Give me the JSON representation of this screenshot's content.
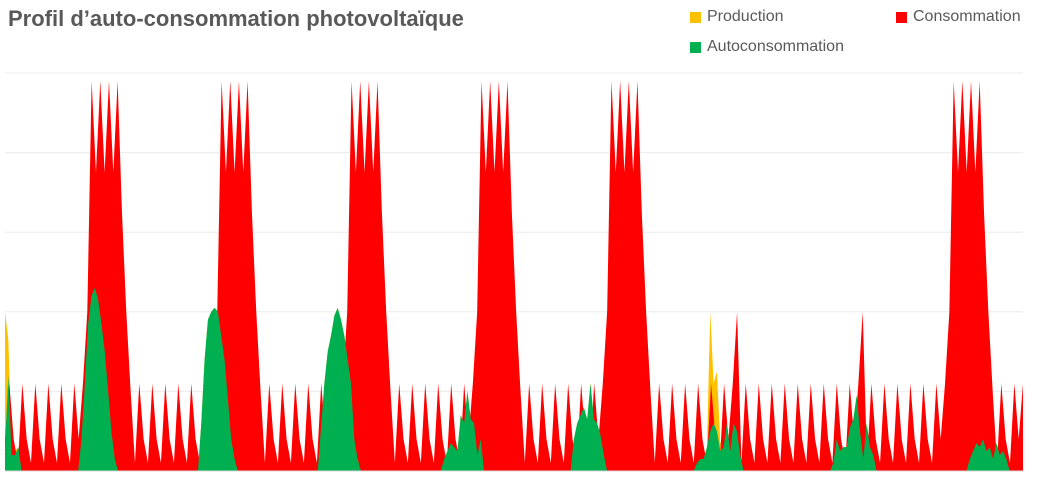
{
  "chart_data": {
    "type": "area",
    "title": "Profil d’auto-consommation photovoltaïque",
    "legend_placement": "top-right",
    "ylim": [
      0,
      100
    ],
    "grid": true,
    "grid_lines": [
      20,
      40,
      60,
      80,
      100
    ],
    "series": [
      {
        "name": "Production",
        "color": "#FFC000",
        "values": [
          40,
          33,
          6,
          5,
          6,
          0,
          0,
          0,
          0,
          0,
          0,
          0,
          0,
          0,
          0,
          0,
          0,
          0,
          0,
          0,
          0,
          0,
          0,
          8,
          22,
          37,
          44,
          46,
          43,
          37,
          30,
          20,
          10,
          3,
          0,
          0,
          0,
          0,
          0,
          0,
          0,
          0,
          0,
          0,
          0,
          0,
          0,
          0,
          0,
          0,
          0,
          0,
          0,
          0,
          0,
          0,
          0,
          0,
          0,
          12,
          28,
          38,
          40,
          41,
          40,
          34,
          28,
          18,
          8,
          3,
          0,
          0,
          0,
          0,
          0,
          0,
          0,
          0,
          0,
          0,
          0,
          0,
          0,
          0,
          0,
          0,
          0,
          0,
          0,
          0,
          0,
          0,
          0,
          0,
          0,
          11,
          22,
          30,
          34,
          39,
          41,
          38,
          34,
          28,
          22,
          8,
          3,
          0,
          0,
          0,
          0,
          0,
          0,
          0,
          0,
          0,
          0,
          0,
          0,
          0,
          0,
          0,
          0,
          0,
          0,
          0,
          0,
          0,
          0,
          0,
          0,
          0,
          3,
          5,
          7,
          6,
          5,
          14,
          12,
          20,
          13,
          12,
          4,
          8,
          0,
          0,
          0,
          0,
          0,
          0,
          0,
          0,
          0,
          0,
          0,
          0,
          0,
          0,
          0,
          0,
          0,
          0,
          0,
          0,
          0,
          0,
          0,
          0,
          0,
          0,
          0,
          8,
          12,
          14,
          16,
          13,
          22,
          13,
          12,
          9,
          4,
          0,
          0,
          0,
          0,
          0,
          0,
          0,
          0,
          0,
          0,
          0,
          0,
          0,
          0,
          0,
          0,
          0,
          0,
          0,
          0,
          0,
          0,
          0,
          0,
          0,
          0,
          0,
          2,
          3,
          3,
          6,
          40,
          22,
          25,
          7,
          8,
          12,
          5,
          12,
          10,
          4,
          0,
          0,
          0,
          0,
          0,
          0,
          0,
          0,
          0,
          0,
          0,
          0,
          0,
          0,
          0,
          0,
          0,
          0,
          0,
          0,
          0,
          0,
          0,
          0,
          0,
          0,
          0,
          2,
          8,
          5,
          6,
          6,
          11,
          13,
          19,
          10,
          3,
          12,
          6,
          4,
          0,
          0,
          0,
          0,
          0,
          0,
          0,
          0,
          0,
          0,
          0,
          0,
          0,
          0,
          0,
          0,
          0,
          0,
          0,
          0,
          0,
          0,
          0,
          0,
          0,
          0,
          0,
          0,
          3,
          5,
          7,
          6,
          8,
          5,
          6,
          3,
          7,
          4,
          5,
          3,
          0,
          0,
          0,
          0,
          0
        ]
      },
      {
        "name": "Consommation",
        "color": "#FF0000",
        "values": [
          8,
          22,
          8,
          2,
          22,
          8,
          2,
          22,
          8,
          2,
          22,
          8,
          2,
          22,
          8,
          2,
          22,
          8,
          22,
          40,
          98,
          75,
          98,
          75,
          98,
          75,
          98,
          65,
          40,
          20,
          2,
          22,
          8,
          2,
          22,
          8,
          2,
          22,
          8,
          2,
          22,
          8,
          2,
          22,
          8,
          2,
          22,
          8,
          22,
          40,
          98,
          75,
          98,
          75,
          98,
          75,
          98,
          65,
          40,
          20,
          2,
          22,
          8,
          2,
          22,
          8,
          2,
          22,
          8,
          2,
          22,
          8,
          2,
          22,
          8,
          2,
          22,
          8,
          22,
          40,
          98,
          75,
          98,
          75,
          98,
          75,
          98,
          65,
          40,
          20,
          2,
          22,
          8,
          2,
          22,
          8,
          2,
          22,
          8,
          2,
          22,
          8,
          2,
          22,
          8,
          2,
          22,
          8,
          22,
          40,
          98,
          75,
          98,
          75,
          98,
          75,
          98,
          65,
          40,
          20,
          2,
          22,
          8,
          2,
          22,
          8,
          2,
          22,
          8,
          2,
          22,
          8,
          2,
          22,
          8,
          2,
          22,
          8,
          22,
          40,
          98,
          75,
          98,
          75,
          98,
          75,
          98,
          65,
          40,
          20,
          2,
          22,
          8,
          2,
          22,
          8,
          2,
          22,
          8,
          2,
          22,
          8,
          2,
          22,
          8,
          2,
          22,
          8,
          22,
          40,
          2,
          22,
          8,
          2,
          22,
          8,
          2,
          22,
          8,
          2,
          22,
          8,
          2,
          22,
          8,
          2,
          22,
          8,
          2,
          22,
          8,
          2,
          22,
          8,
          2,
          22,
          8,
          22,
          40,
          2,
          22,
          8,
          2,
          22,
          8,
          2,
          22,
          8,
          2,
          22,
          8,
          2,
          22,
          8,
          2,
          22,
          8,
          22,
          40,
          98,
          75,
          98,
          75,
          98,
          75,
          98,
          65,
          40,
          20,
          2,
          22,
          8,
          2,
          22,
          8,
          22
        ]
      },
      {
        "name": "Autoconsommation",
        "color": "#00B050",
        "values": [
          6,
          24,
          4,
          4,
          6,
          0,
          0,
          0,
          0,
          0,
          0,
          0,
          0,
          0,
          0,
          0,
          0,
          0,
          0,
          0,
          0,
          0,
          0,
          8,
          22,
          37,
          44,
          46,
          43,
          37,
          30,
          20,
          10,
          3,
          0,
          0,
          0,
          0,
          0,
          0,
          0,
          0,
          0,
          0,
          0,
          0,
          0,
          0,
          0,
          0,
          0,
          0,
          0,
          0,
          0,
          0,
          0,
          0,
          0,
          12,
          28,
          38,
          40,
          41,
          40,
          34,
          28,
          18,
          8,
          3,
          0,
          0,
          0,
          0,
          0,
          0,
          0,
          0,
          0,
          0,
          0,
          0,
          0,
          0,
          0,
          0,
          0,
          0,
          0,
          0,
          0,
          0,
          0,
          0,
          0,
          11,
          22,
          30,
          34,
          39,
          41,
          38,
          34,
          28,
          22,
          8,
          3,
          0,
          0,
          0,
          0,
          0,
          0,
          0,
          0,
          0,
          0,
          0,
          0,
          0,
          0,
          0,
          0,
          0,
          0,
          0,
          0,
          0,
          0,
          0,
          0,
          0,
          3,
          5,
          7,
          6,
          5,
          14,
          12,
          20,
          13,
          12,
          4,
          8,
          0,
          0,
          0,
          0,
          0,
          0,
          0,
          0,
          0,
          0,
          0,
          0,
          0,
          0,
          0,
          0,
          0,
          0,
          0,
          0,
          0,
          0,
          0,
          0,
          0,
          0,
          0,
          8,
          12,
          14,
          16,
          13,
          22,
          13,
          12,
          9,
          4,
          0,
          0,
          0,
          0,
          0,
          0,
          0,
          0,
          0,
          0,
          0,
          0,
          0,
          0,
          0,
          0,
          0,
          0,
          0,
          0,
          0,
          0,
          0,
          0,
          0,
          0,
          0,
          2,
          3,
          3,
          6,
          10,
          12,
          10,
          5,
          6,
          12,
          5,
          12,
          10,
          4,
          0,
          0,
          0,
          0,
          0,
          0,
          0,
          0,
          0,
          0,
          0,
          0,
          0,
          0,
          0,
          0,
          0,
          0,
          0,
          0,
          0,
          0,
          0,
          0,
          0,
          0,
          0,
          2,
          8,
          5,
          6,
          6,
          11,
          13,
          19,
          10,
          3,
          12,
          6,
          4,
          0,
          0,
          0,
          0,
          0,
          0,
          0,
          0,
          0,
          0,
          0,
          0,
          0,
          0,
          0,
          0,
          0,
          0,
          0,
          0,
          0,
          0,
          0,
          0,
          0,
          0,
          0,
          0,
          3,
          5,
          7,
          6,
          8,
          5,
          6,
          3,
          7,
          4,
          5,
          3,
          0,
          0,
          0,
          0,
          0
        ]
      }
    ]
  }
}
